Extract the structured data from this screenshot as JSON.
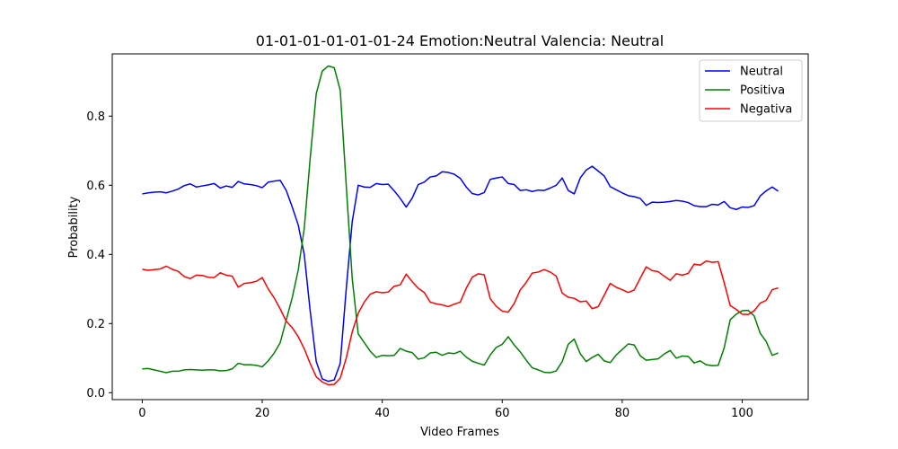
{
  "chart_data": {
    "type": "line",
    "title": "01-01-01-01-01-01-24 Emotion:Neutral Valencia: Neutral",
    "xlabel": "Video Frames",
    "ylabel": "Probability",
    "xlim": [
      -5,
      111
    ],
    "ylim": [
      -0.02,
      0.98
    ],
    "xticks": [
      0,
      20,
      40,
      60,
      80,
      100
    ],
    "yticks": [
      0.0,
      0.2,
      0.4,
      0.6,
      0.8
    ],
    "ytick_labels": [
      "0.0",
      "0.2",
      "0.4",
      "0.6",
      "0.8"
    ],
    "grid": false,
    "legend_position": "top-right",
    "x_start": 0,
    "series": [
      {
        "name": "Neutral",
        "color": "#0000ff",
        "values": [
          0.575,
          0.578,
          0.58,
          0.581,
          0.578,
          0.583,
          0.589,
          0.599,
          0.604,
          0.595,
          0.598,
          0.601,
          0.605,
          0.592,
          0.598,
          0.594,
          0.611,
          0.604,
          0.602,
          0.599,
          0.593,
          0.609,
          0.612,
          0.614,
          0.585,
          0.537,
          0.485,
          0.4,
          0.235,
          0.09,
          0.04,
          0.033,
          0.037,
          0.085,
          0.3,
          0.495,
          0.6,
          0.595,
          0.594,
          0.605,
          0.602,
          0.603,
          0.584,
          0.562,
          0.537,
          0.563,
          0.602,
          0.609,
          0.624,
          0.627,
          0.639,
          0.637,
          0.632,
          0.62,
          0.595,
          0.576,
          0.572,
          0.579,
          0.617,
          0.621,
          0.624,
          0.605,
          0.602,
          0.585,
          0.587,
          0.582,
          0.586,
          0.585,
          0.592,
          0.6,
          0.621,
          0.585,
          0.575,
          0.621,
          0.644,
          0.655,
          0.641,
          0.627,
          0.596,
          0.587,
          0.578,
          0.57,
          0.567,
          0.562,
          0.542,
          0.551,
          0.55,
          0.551,
          0.553,
          0.556,
          0.554,
          0.55,
          0.541,
          0.538,
          0.538,
          0.545,
          0.543,
          0.553,
          0.535,
          0.53,
          0.537,
          0.536,
          0.541,
          0.569,
          0.584,
          0.595,
          0.583
        ]
      },
      {
        "name": "Positiva",
        "color": "#008000",
        "values": [
          0.069,
          0.07,
          0.066,
          0.062,
          0.058,
          0.062,
          0.062,
          0.066,
          0.067,
          0.066,
          0.065,
          0.066,
          0.066,
          0.063,
          0.064,
          0.069,
          0.085,
          0.081,
          0.081,
          0.079,
          0.075,
          0.092,
          0.115,
          0.145,
          0.21,
          0.275,
          0.355,
          0.475,
          0.68,
          0.865,
          0.93,
          0.945,
          0.94,
          0.875,
          0.6,
          0.33,
          0.17,
          0.145,
          0.12,
          0.102,
          0.108,
          0.107,
          0.108,
          0.128,
          0.12,
          0.116,
          0.097,
          0.101,
          0.115,
          0.117,
          0.108,
          0.115,
          0.113,
          0.12,
          0.103,
          0.091,
          0.085,
          0.08,
          0.109,
          0.131,
          0.14,
          0.162,
          0.138,
          0.118,
          0.094,
          0.072,
          0.066,
          0.059,
          0.058,
          0.063,
          0.09,
          0.14,
          0.155,
          0.113,
          0.09,
          0.102,
          0.111,
          0.092,
          0.087,
          0.109,
          0.125,
          0.141,
          0.138,
          0.107,
          0.094,
          0.096,
          0.098,
          0.112,
          0.122,
          0.1,
          0.106,
          0.105,
          0.086,
          0.092,
          0.081,
          0.078,
          0.079,
          0.13,
          0.211,
          0.227,
          0.237,
          0.238,
          0.222,
          0.172,
          0.148,
          0.108,
          0.115
        ]
      },
      {
        "name": "Negativa",
        "color": "#ff0000",
        "values": [
          0.357,
          0.354,
          0.356,
          0.358,
          0.366,
          0.357,
          0.351,
          0.336,
          0.33,
          0.34,
          0.339,
          0.334,
          0.333,
          0.347,
          0.34,
          0.337,
          0.305,
          0.316,
          0.318,
          0.322,
          0.333,
          0.3,
          0.274,
          0.242,
          0.207,
          0.188,
          0.162,
          0.127,
          0.084,
          0.046,
          0.031,
          0.023,
          0.024,
          0.042,
          0.1,
          0.176,
          0.23,
          0.262,
          0.285,
          0.292,
          0.289,
          0.291,
          0.308,
          0.312,
          0.343,
          0.321,
          0.302,
          0.29,
          0.262,
          0.257,
          0.254,
          0.249,
          0.256,
          0.262,
          0.302,
          0.334,
          0.344,
          0.341,
          0.272,
          0.25,
          0.236,
          0.233,
          0.258,
          0.297,
          0.319,
          0.346,
          0.349,
          0.356,
          0.349,
          0.337,
          0.288,
          0.276,
          0.273,
          0.263,
          0.265,
          0.243,
          0.249,
          0.282,
          0.316,
          0.305,
          0.298,
          0.29,
          0.297,
          0.331,
          0.364,
          0.353,
          0.35,
          0.337,
          0.325,
          0.344,
          0.34,
          0.345,
          0.372,
          0.369,
          0.381,
          0.377,
          0.379,
          0.318,
          0.252,
          0.241,
          0.227,
          0.226,
          0.237,
          0.259,
          0.267,
          0.298,
          0.303
        ]
      }
    ]
  }
}
